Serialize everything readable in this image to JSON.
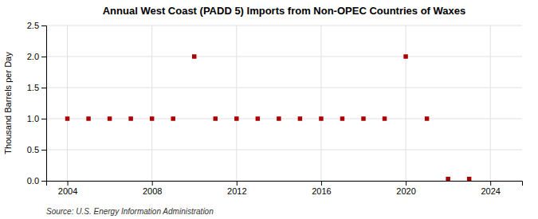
{
  "chart_data": {
    "type": "scatter",
    "title": "Annual West Coast (PADD 5) Imports from Non-OPEC Countries of Waxes",
    "ylabel": "Thousand Barrels per Day",
    "annotations": [
      "Source: U.S. Energy Information Administration"
    ],
    "x": [
      2004,
      2005,
      2006,
      2007,
      2008,
      2009,
      2010,
      2011,
      2012,
      2013,
      2014,
      2015,
      2016,
      2017,
      2018,
      2019,
      2020,
      2021,
      2022,
      2023
    ],
    "values": [
      1,
      1,
      1,
      1,
      1,
      1,
      2,
      1,
      1,
      1,
      1,
      1,
      1,
      1,
      1,
      1,
      2,
      1,
      0.03,
      0.03
    ],
    "color": "#aa0000",
    "marker": "square",
    "xlim": [
      2003.0,
      2025.5
    ],
    "ylim": [
      0.0,
      2.5
    ],
    "xticks": [
      2004,
      2008,
      2012,
      2016,
      2020,
      2024
    ],
    "yticks": [
      {
        "value": 0.0,
        "label": "0.0"
      },
      0.5,
      {
        "value": 1.0,
        "label": "1.0"
      },
      1.5,
      {
        "value": 2.0,
        "label": "2.0"
      },
      2.5
    ],
    "grid": true
  }
}
